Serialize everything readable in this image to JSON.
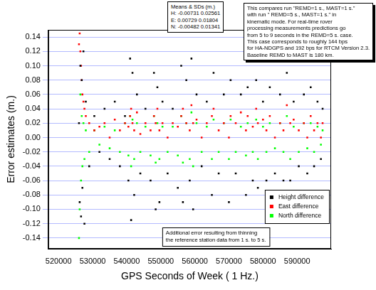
{
  "chart_data": {
    "type": "scatter",
    "x_label": "GPS Seconds of Week ( 1 Hz.)",
    "y_label": "Error estimates (m.)",
    "annotations": [
      [
        "Means & SDs (m.)",
        "H: -0.00731 0.02561",
        "E: 0.00729 0.01804",
        "N: -0.00482 0.01341"
      ],
      [
        "This compares run \"REMD=1 s., MAST=1 s.\"",
        "with run \" REMD=5 s., MAST=1 s.\" in",
        "kinematic mode.  For real-time rover",
        "processing measurements predictions go",
        "from 5 to 9 seconds in the REMD=5 s. case.",
        "This case corresponds to roughly 144 bps",
        "for HA-NDGPS and 192 bps for RTCM Version 2.3.",
        "Baseline REMD to MAST is 180 km."
      ],
      [
        "Additional error resulting from thinning",
        "the reference station data from 1 s. to 5 s."
      ]
    ],
    "x": [
      526000,
      526200,
      526400,
      526600,
      526800,
      527000,
      527300,
      527600,
      528000,
      529000,
      530500,
      532000,
      533500,
      535000,
      536500,
      538000,
      539500,
      540500,
      541000,
      541300,
      541700,
      542200,
      543000,
      544000,
      545500,
      547000,
      548000,
      548500,
      549000,
      549600,
      550500,
      552000,
      553500,
      555000,
      556000,
      556500,
      557500,
      558500,
      559000,
      559500,
      560500,
      562000,
      563500,
      565000,
      565500,
      567000,
      568500,
      570000,
      570500,
      572000,
      573500,
      575000,
      575500,
      577000,
      578000,
      578500,
      580000,
      581000,
      582000,
      583500,
      585000,
      586000,
      587000,
      588000,
      589000,
      590500,
      592000,
      593000,
      594000,
      595000,
      596000,
      597000,
      597500
    ],
    "series": [
      {
        "name": "Height difference",
        "color": "#000000",
        "values": [
          0.02,
          -0.09,
          0.1,
          -0.11,
          0.08,
          -0.07,
          0.12,
          -0.12,
          0.05,
          -0.04,
          0.03,
          -0.02,
          0.04,
          -0.03,
          0.05,
          -0.04,
          0.03,
          -0.06,
          0.11,
          -0.115,
          0.09,
          -0.08,
          0.06,
          -0.05,
          0.04,
          -0.06,
          0.09,
          -0.1,
          0.07,
          -0.09,
          0.05,
          -0.05,
          0.04,
          -0.07,
          0.1,
          -0.09,
          0.08,
          -0.06,
          0.11,
          -0.1,
          0.06,
          -0.04,
          0.05,
          -0.08,
          0.09,
          -0.05,
          0.06,
          -0.09,
          0.08,
          -0.05,
          0.06,
          -0.08,
          0.07,
          -0.06,
          0.08,
          -0.07,
          0.05,
          -0.06,
          0.07,
          -0.05,
          0.06,
          -0.06,
          0.09,
          -0.06,
          0.05,
          -0.04,
          0.06,
          -0.05,
          0.07,
          -0.04,
          0.05,
          -0.03,
          0.04
        ]
      },
      {
        "name": "East difference",
        "color": "#ff0000",
        "values": [
          0.13,
          0.145,
          0.12,
          0.1,
          0.08,
          0.06,
          0.05,
          0.04,
          0.03,
          0.02,
          0.01,
          0.015,
          0.02,
          0.0,
          0.025,
          0.01,
          0.02,
          0.015,
          0.03,
          0.04,
          0.02,
          0.01,
          0.035,
          0.005,
          0.02,
          0.01,
          0.03,
          0.02,
          0.04,
          0.01,
          0.02,
          0.0,
          0.02,
          0.015,
          0.03,
          0.04,
          0.02,
          0.01,
          0.045,
          0.02,
          0.025,
          0.0,
          0.02,
          0.03,
          0.04,
          0.01,
          0.02,
          0.0,
          0.03,
          0.02,
          0.035,
          0.01,
          0.03,
          0.015,
          0.04,
          0.02,
          0.025,
          0.01,
          0.03,
          0.0,
          0.02,
          0.01,
          0.045,
          0.02,
          0.025,
          0.01,
          0.02,
          0.0,
          0.03,
          0.01,
          0.02,
          0.0,
          0.02
        ]
      },
      {
        "name": "North difference",
        "color": "#00ff00",
        "values": [
          -0.14,
          -0.1,
          0.06,
          -0.06,
          0.03,
          -0.04,
          0.02,
          -0.03,
          0.01,
          -0.02,
          0.01,
          -0.01,
          0.015,
          -0.015,
          0.01,
          -0.02,
          0.02,
          -0.025,
          0.03,
          -0.04,
          0.025,
          -0.03,
          0.02,
          -0.02,
          0.015,
          -0.025,
          0.03,
          -0.035,
          0.02,
          -0.03,
          0.015,
          -0.02,
          0.015,
          -0.025,
          0.03,
          -0.035,
          0.02,
          -0.03,
          0.035,
          -0.04,
          0.02,
          -0.02,
          0.015,
          -0.03,
          0.025,
          -0.02,
          0.02,
          -0.03,
          0.025,
          -0.02,
          0.015,
          -0.025,
          0.02,
          -0.02,
          0.025,
          -0.03,
          0.015,
          -0.02,
          0.02,
          -0.015,
          0.02,
          -0.02,
          0.03,
          -0.03,
          0.015,
          -0.02,
          0.02,
          -0.015,
          0.02,
          -0.02,
          0.015,
          -0.01,
          0.01
        ]
      }
    ],
    "xlim": [
      517000,
      600000
    ],
    "xticks": [
      520000,
      530000,
      540000,
      550000,
      560000,
      570000,
      580000,
      590000
    ],
    "ylim": [
      -0.155,
      0.15
    ],
    "yticks": [
      -0.14,
      -0.12,
      {
        "value": -0.1,
        "label": "-0.10"
      },
      -0.08,
      -0.06,
      -0.04,
      -0.02,
      {
        "value": 0,
        "label": "0.00"
      },
      0.02,
      0.04,
      0.06,
      0.08,
      {
        "value": 0.1,
        "label": "0.10"
      },
      0.12,
      0.14
    ],
    "grid": true,
    "legend": "lower right",
    "marker": "square"
  }
}
